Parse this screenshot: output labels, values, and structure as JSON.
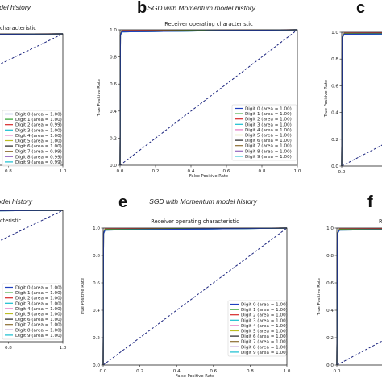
{
  "chart_data": [
    {
      "panel": "",
      "caption": "model history",
      "title": "characteristic",
      "type": "line",
      "xlabel": "",
      "ylabel": "",
      "xlim": [
        0,
        1
      ],
      "ylim": [
        0,
        1
      ],
      "x_ticks": [
        "0.8",
        "1.0"
      ],
      "y_ticks": [],
      "legend_position": "lower-right",
      "series": [
        {
          "name": "Digit 0 (area = 1.00)",
          "color": "#1f3fbf"
        },
        {
          "name": "Digit 1 (area = 1.00)",
          "color": "#2ca02c"
        },
        {
          "name": "Digit 2 (area = 0.99)",
          "color": "#d62728"
        },
        {
          "name": "Digit 3 (area = 1.00)",
          "color": "#17becf"
        },
        {
          "name": "Digit 4 (area = 1.00)",
          "color": "#e377c2"
        },
        {
          "name": "Digit 5 (area = 1.00)",
          "color": "#bcbd22"
        },
        {
          "name": "Digit 6 (area = 1.00)",
          "color": "#222222"
        },
        {
          "name": "Digit 7 (area = 0.99)",
          "color": "#8c6d31"
        },
        {
          "name": "Digit 8 (area = 0.99)",
          "color": "#9467bd"
        },
        {
          "name": "Digit 9 (area = 0.99)",
          "color": "#17becf"
        }
      ]
    },
    {
      "panel": "b",
      "caption": "SGD with Momentum model history",
      "title": "Receiver operating characteristic",
      "type": "line",
      "xlabel": "False Positive Rate",
      "ylabel": "True Positive Rate",
      "xlim": [
        0,
        1
      ],
      "ylim": [
        0,
        1
      ],
      "x_ticks": [
        "0.0",
        "0.2",
        "0.4",
        "0.6",
        "0.8",
        "1.0"
      ],
      "y_ticks": [
        "0.0",
        "0.2",
        "0.4",
        "0.6",
        "0.8",
        "1.0"
      ],
      "legend_position": "lower-right",
      "series": [
        {
          "name": "Digit 0 (area = 1.00)",
          "color": "#1f3fbf"
        },
        {
          "name": "Digit 1 (area = 1.00)",
          "color": "#2ca02c"
        },
        {
          "name": "Digit 2 (area = 1.00)",
          "color": "#d62728"
        },
        {
          "name": "Digit 3 (area = 1.00)",
          "color": "#17becf"
        },
        {
          "name": "Digit 4 (area = 1.00)",
          "color": "#e377c2"
        },
        {
          "name": "Digit 5 (area = 1.00)",
          "color": "#bcbd22"
        },
        {
          "name": "Digit 6 (area = 1.00)",
          "color": "#222222"
        },
        {
          "name": "Digit 7 (area = 1.00)",
          "color": "#8c6d31"
        },
        {
          "name": "Digit 8 (area = 1.00)",
          "color": "#9467bd"
        },
        {
          "name": "Digit 9 (area = 1.00)",
          "color": "#17becf"
        }
      ]
    },
    {
      "panel": "c",
      "caption": "",
      "title": "",
      "type": "line",
      "xlabel": "",
      "ylabel": "True Positive Rate",
      "xlim": [
        0,
        1
      ],
      "ylim": [
        0,
        1
      ],
      "x_ticks": [
        "0.0",
        "0.2"
      ],
      "y_ticks": [
        "0.0",
        "0.2",
        "0.4",
        "0.6",
        "0.8",
        "1.0"
      ],
      "legend_position": "",
      "series": []
    },
    {
      "panel": "",
      "caption": "odel history",
      "title": "cteristic",
      "type": "line",
      "xlabel": "",
      "ylabel": "",
      "xlim": [
        0,
        1
      ],
      "ylim": [
        0,
        1
      ],
      "x_ticks": [
        "0.8",
        "1.0"
      ],
      "y_ticks": [],
      "legend_position": "lower-right",
      "series": [
        {
          "name": "Digit 0 (area = 1.00)",
          "color": "#1f3fbf"
        },
        {
          "name": "Digit 1 (area = 1.00)",
          "color": "#2ca02c"
        },
        {
          "name": "Digit 2 (area = 1.00)",
          "color": "#d62728"
        },
        {
          "name": "Digit 3 (area = 1.00)",
          "color": "#17becf"
        },
        {
          "name": "Digit 4 (area = 1.00)",
          "color": "#e377c2"
        },
        {
          "name": "Digit 5 (area = 1.00)",
          "color": "#bcbd22"
        },
        {
          "name": "Digit 6 (area = 1.00)",
          "color": "#222222"
        },
        {
          "name": "Digit 7 (area = 1.00)",
          "color": "#8c6d31"
        },
        {
          "name": "Digit 8 (area = 1.00)",
          "color": "#9467bd"
        },
        {
          "name": "Digit 9 (area = 1.00)",
          "color": "#17becf"
        }
      ]
    },
    {
      "panel": "e",
      "caption": "SGD with Momentum model history",
      "title": "Receiver operating characteristic",
      "type": "line",
      "xlabel": "False Positive Rate",
      "ylabel": "True Positive Rate",
      "xlim": [
        0,
        1
      ],
      "ylim": [
        0,
        1
      ],
      "x_ticks": [
        "0.0",
        "0.2",
        "0.4",
        "0.6",
        "0.8",
        "1.0"
      ],
      "y_ticks": [
        "0.0",
        "0.2",
        "0.4",
        "0.6",
        "0.8",
        "1.0"
      ],
      "legend_position": "lower-right",
      "series": [
        {
          "name": "Digit 0 (area = 1.00)",
          "color": "#1f3fbf"
        },
        {
          "name": "Digit 1 (area = 1.00)",
          "color": "#2ca02c"
        },
        {
          "name": "Digit 2 (area = 1.00)",
          "color": "#d62728"
        },
        {
          "name": "Digit 3 (area = 1.00)",
          "color": "#17becf"
        },
        {
          "name": "Digit 4 (area = 1.00)",
          "color": "#e377c2"
        },
        {
          "name": "Digit 5 (area = 1.00)",
          "color": "#bcbd22"
        },
        {
          "name": "Digit 6 (area = 1.00)",
          "color": "#222222"
        },
        {
          "name": "Digit 7 (area = 1.00)",
          "color": "#8c6d31"
        },
        {
          "name": "Digit 8 (area = 1.00)",
          "color": "#9467bd"
        },
        {
          "name": "Digit 9 (area = 1.00)",
          "color": "#17becf"
        }
      ]
    },
    {
      "panel": "f",
      "caption": "",
      "title": "R",
      "type": "line",
      "xlabel": "",
      "ylabel": "True Positive Rate",
      "xlim": [
        0,
        1
      ],
      "ylim": [
        0,
        1
      ],
      "x_ticks": [
        "0.0",
        "0.2"
      ],
      "y_ticks": [
        "0.0",
        "0.2",
        "0.4",
        "0.6",
        "0.8",
        "1.0"
      ],
      "legend_position": "",
      "series": []
    }
  ]
}
